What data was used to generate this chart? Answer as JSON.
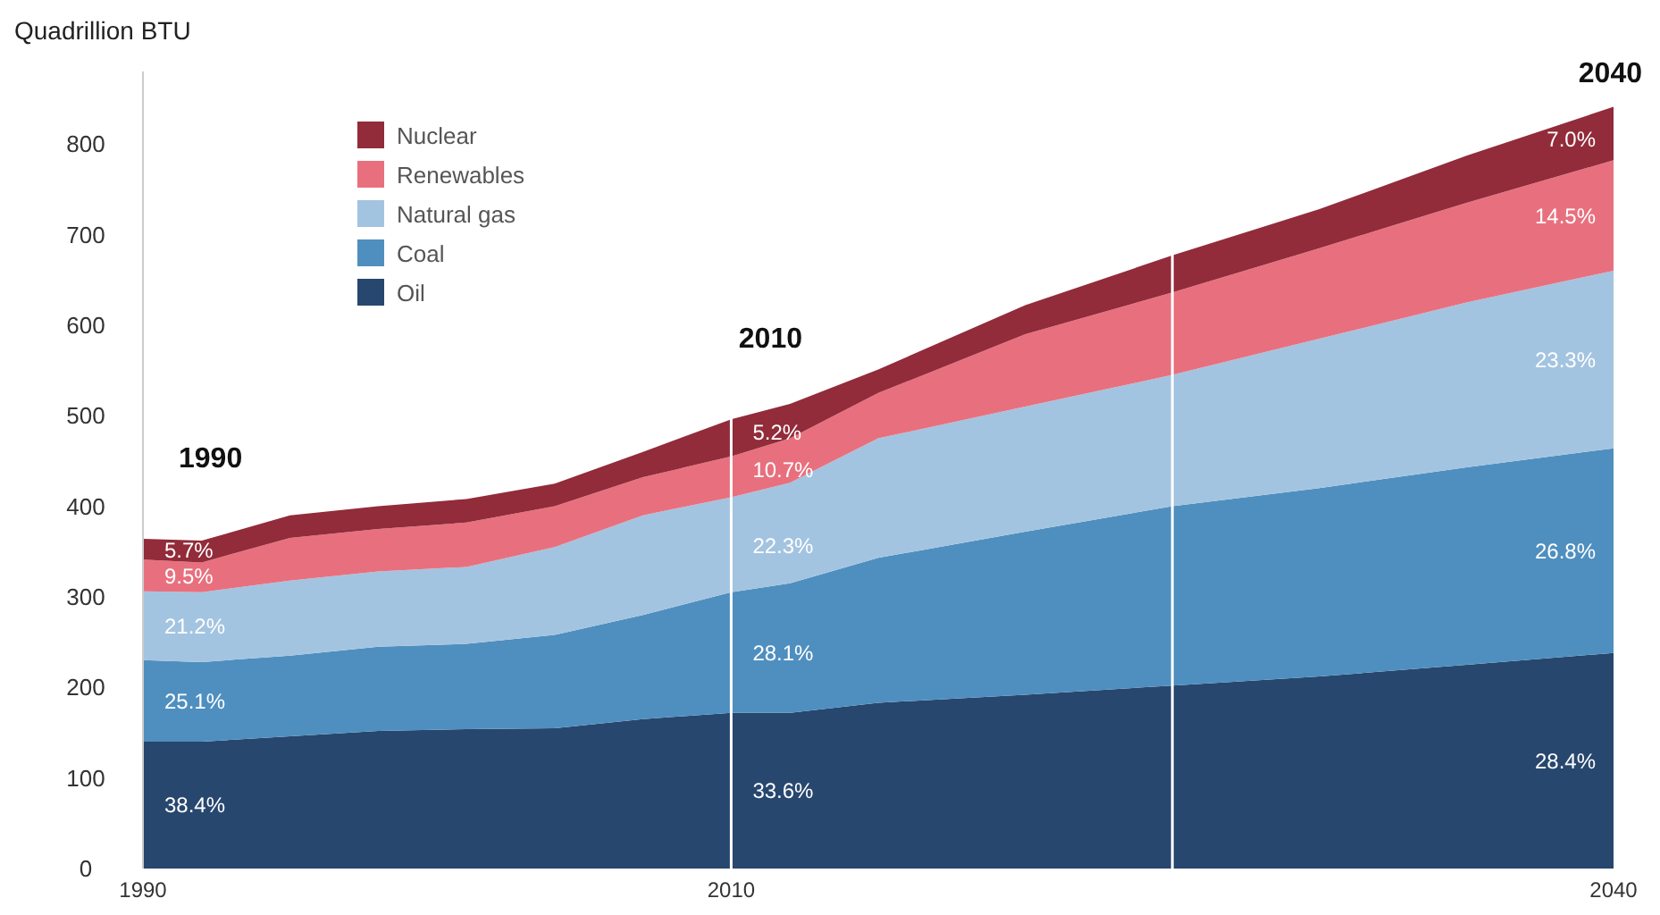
{
  "chart_data": {
    "type": "area",
    "stacked": true,
    "ylabel": "Quadrillion BTU",
    "x": [
      1990,
      1992,
      1995,
      1998,
      2001,
      2004,
      2007,
      2010,
      2012,
      2015,
      2020,
      2025,
      2030,
      2035,
      2040
    ],
    "xlim": [
      1990,
      2040
    ],
    "xticks": [
      1990,
      2010,
      2040
    ],
    "ylim": [
      0,
      880
    ],
    "yticks": [
      0,
      100,
      200,
      300,
      400,
      500,
      600,
      700,
      800
    ],
    "series": [
      {
        "name": "Oil",
        "color": "#27476e",
        "values": [
          140,
          140,
          146,
          152,
          154,
          155,
          165,
          172,
          172,
          183,
          192,
          202,
          212,
          225,
          238
        ]
      },
      {
        "name": "Coal",
        "color": "#4f8fbf",
        "values": [
          90,
          88,
          89,
          93,
          94,
          103,
          115,
          133,
          143,
          160,
          180,
          198,
          208,
          218,
          226
        ]
      },
      {
        "name": "Natural gas",
        "color": "#a3c4e0",
        "values": [
          76,
          77,
          83,
          83,
          85,
          97,
          110,
          105,
          111,
          132,
          138,
          145,
          165,
          182,
          196
        ]
      },
      {
        "name": "Renewables",
        "color": "#e8707e",
        "values": [
          35,
          33,
          47,
          47,
          49,
          45,
          42,
          45,
          49,
          50,
          80,
          91,
          100,
          110,
          122
        ]
      },
      {
        "name": "Nuclear",
        "color": "#922b3a",
        "values": [
          23,
          24,
          25,
          25,
          26,
          25,
          28,
          41,
          38,
          26,
          32,
          41,
          43,
          52,
          59
        ]
      }
    ],
    "legend": "top left",
    "grid": false,
    "ref_lines": [
      {
        "axis": "x",
        "value": 2010,
        "color": "#ffffff"
      },
      {
        "axis": "x",
        "value": 2025,
        "color": "#ffffff"
      }
    ],
    "annotations": [
      {
        "text": "1990",
        "x": 1990,
        "y": 364
      },
      {
        "text": "2010",
        "x": 2010,
        "y": 496
      },
      {
        "text": "2040",
        "x": 2040,
        "y": 841
      },
      {
        "text": "38.4%",
        "x": 1990,
        "y": 70
      },
      {
        "text": "25.1%",
        "x": 1990,
        "y": 185
      },
      {
        "text": "21.2%",
        "x": 1990,
        "y": 268
      },
      {
        "text": "9.5%",
        "x": 1990,
        "y": 323
      },
      {
        "text": "5.7%",
        "x": 1990,
        "y": 352
      },
      {
        "text": "33.6%",
        "x": 2010,
        "y": 86
      },
      {
        "text": "28.1%",
        "x": 2010,
        "y": 238
      },
      {
        "text": "22.3%",
        "x": 2010,
        "y": 357
      },
      {
        "text": "10.7%",
        "x": 2010,
        "y": 440
      },
      {
        "text": "5.2%",
        "x": 2010,
        "y": 482
      },
      {
        "text": "28.4%",
        "x": 2040,
        "y": 119
      },
      {
        "text": "26.8%",
        "x": 2040,
        "y": 351
      },
      {
        "text": "23.3%",
        "x": 2040,
        "y": 562
      },
      {
        "text": "14.5%",
        "x": 2040,
        "y": 721
      },
      {
        "text": "7.0%",
        "x": 2040,
        "y": 805
      }
    ]
  }
}
